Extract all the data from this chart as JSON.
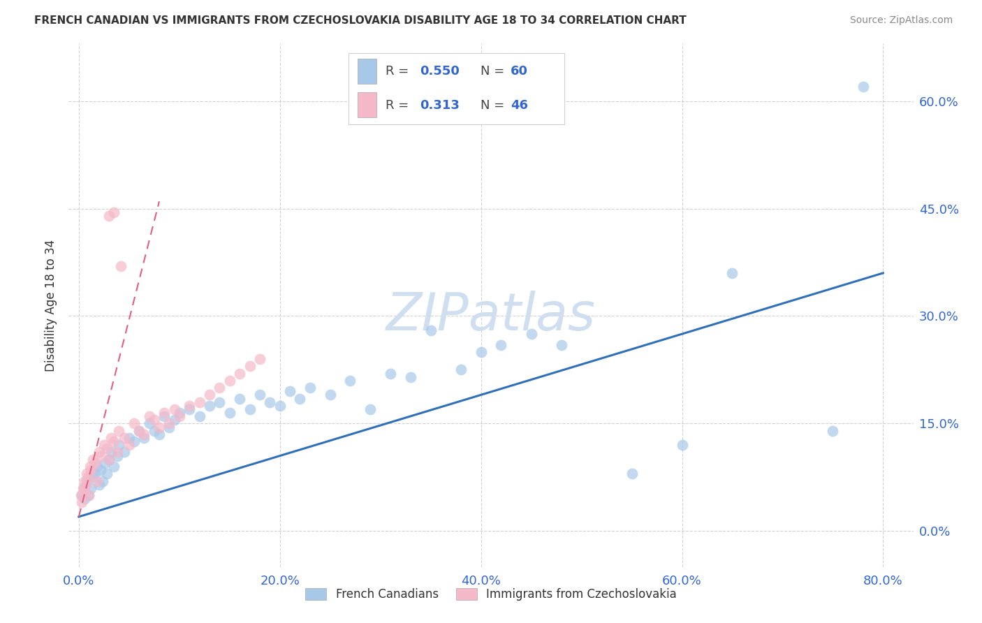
{
  "title": "FRENCH CANADIAN VS IMMIGRANTS FROM CZECHOSLOVAKIA DISABILITY AGE 18 TO 34 CORRELATION CHART",
  "source": "Source: ZipAtlas.com",
  "ylabel": "Disability Age 18 to 34",
  "xlim": [
    -1.0,
    83.0
  ],
  "ylim": [
    -5.0,
    68.0
  ],
  "xtick_vals": [
    0,
    20,
    40,
    60,
    80
  ],
  "ytick_vals": [
    0,
    15,
    30,
    45,
    60
  ],
  "r_blue": "0.550",
  "n_blue": "60",
  "r_pink": "0.313",
  "n_pink": "46",
  "blue_dot_color": "#a8c8e8",
  "blue_line_color": "#3070b8",
  "pink_dot_color": "#f5b8c8",
  "pink_line_color": "#e06080",
  "text_color": "#3366cc",
  "title_color": "#333333",
  "source_color": "#888888",
  "watermark": "ZIPatlas",
  "watermark_color": "#d0dff0",
  "legend_label_blue": "French Canadians",
  "legend_label_pink": "Immigrants from Czechoslovakia",
  "blue_trend": [
    0.0,
    80.0,
    2.0,
    36.0
  ],
  "pink_trend": [
    0.0,
    8.0,
    2.0,
    46.0
  ],
  "blue_x": [
    0.3,
    0.5,
    0.6,
    0.8,
    1.0,
    1.2,
    1.4,
    1.6,
    1.8,
    2.0,
    2.2,
    2.4,
    2.6,
    2.8,
    3.0,
    3.2,
    3.5,
    3.8,
    4.0,
    4.5,
    5.0,
    5.5,
    6.0,
    6.5,
    7.0,
    7.5,
    8.0,
    8.5,
    9.0,
    9.5,
    10.0,
    11.0,
    12.0,
    13.0,
    14.0,
    15.0,
    16.0,
    17.0,
    18.0,
    19.0,
    20.0,
    21.0,
    22.0,
    23.0,
    25.0,
    27.0,
    29.0,
    31.0,
    33.0,
    35.0,
    38.0,
    40.0,
    42.0,
    45.0,
    48.0,
    55.0,
    60.0,
    65.0,
    75.0,
    78.0
  ],
  "blue_y": [
    5.0,
    6.0,
    4.5,
    7.0,
    5.0,
    6.0,
    7.5,
    8.0,
    9.0,
    6.5,
    8.5,
    7.0,
    9.5,
    8.0,
    10.0,
    11.0,
    9.0,
    10.5,
    12.0,
    11.0,
    13.0,
    12.5,
    14.0,
    13.0,
    15.0,
    14.0,
    13.5,
    16.0,
    14.5,
    15.5,
    16.5,
    17.0,
    16.0,
    17.5,
    18.0,
    16.5,
    18.5,
    17.0,
    19.0,
    18.0,
    17.5,
    19.5,
    18.5,
    20.0,
    19.0,
    21.0,
    17.0,
    22.0,
    21.5,
    28.0,
    22.5,
    25.0,
    26.0,
    27.5,
    26.0,
    8.0,
    12.0,
    36.0,
    14.0,
    62.0
  ],
  "pink_x": [
    0.2,
    0.3,
    0.4,
    0.5,
    0.6,
    0.7,
    0.8,
    0.9,
    1.0,
    1.1,
    1.2,
    1.4,
    1.6,
    1.8,
    2.0,
    2.2,
    2.5,
    2.8,
    3.0,
    3.2,
    3.5,
    3.8,
    4.0,
    4.5,
    5.0,
    5.5,
    6.0,
    6.5,
    7.0,
    7.5,
    8.0,
    8.5,
    9.0,
    9.5,
    10.0,
    11.0,
    12.0,
    13.0,
    14.0,
    15.0,
    16.0,
    17.0,
    18.0,
    3.0,
    3.5,
    4.2
  ],
  "pink_y": [
    5.0,
    4.0,
    6.0,
    5.5,
    7.0,
    6.5,
    8.0,
    7.5,
    5.0,
    9.0,
    8.5,
    10.0,
    9.5,
    7.0,
    11.0,
    10.5,
    12.0,
    11.5,
    10.0,
    13.0,
    12.5,
    11.0,
    14.0,
    13.0,
    12.0,
    15.0,
    14.0,
    13.5,
    16.0,
    15.5,
    14.5,
    16.5,
    15.0,
    17.0,
    16.0,
    17.5,
    18.0,
    19.0,
    20.0,
    21.0,
    22.0,
    23.0,
    24.0,
    44.0,
    44.5,
    37.0
  ]
}
